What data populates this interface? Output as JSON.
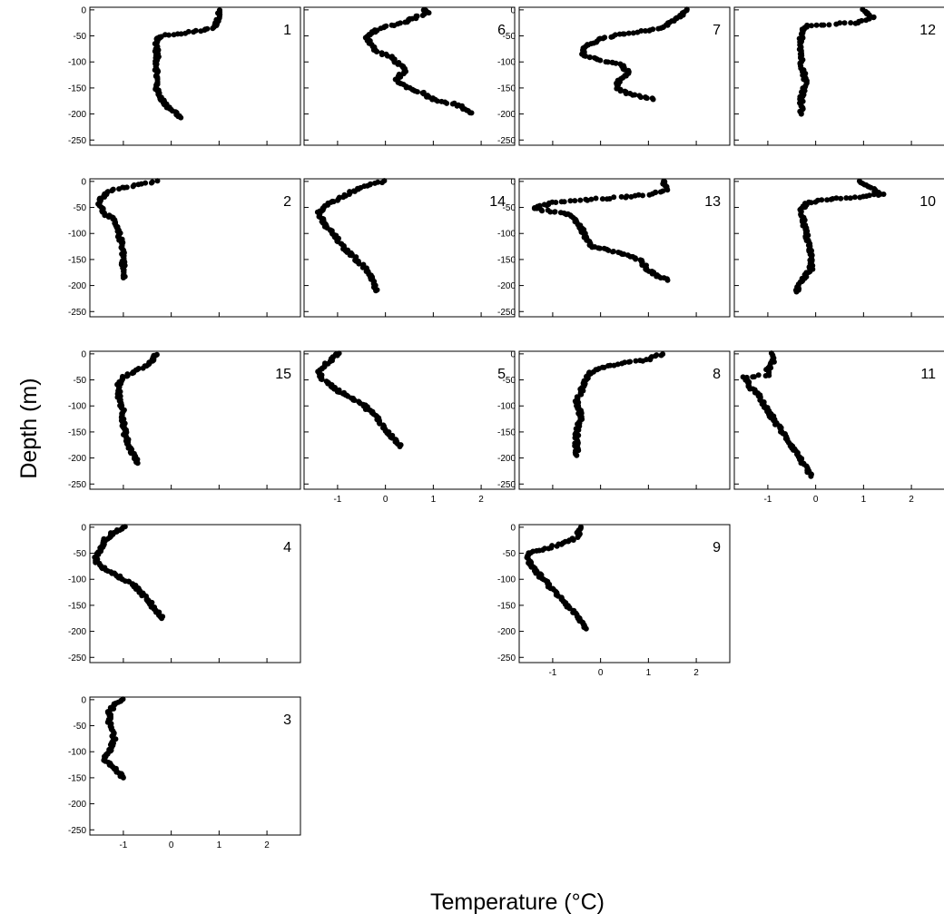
{
  "figure": {
    "xlabel": "Temperature (°C)",
    "ylabel": "Depth (m)"
  },
  "chart_data": {
    "type": "scatter",
    "xlabel": "Temperature (°C)",
    "ylabel": "Depth (m)",
    "xlim": [
      -1.7,
      2.7
    ],
    "ylim": [
      -260,
      5
    ],
    "x_ticks": [
      -1,
      0,
      1,
      2
    ],
    "y_ticks": [
      0,
      -50,
      -100,
      -150,
      -200,
      -250
    ],
    "x_tick_labels": [
      "-1",
      "0",
      "1",
      "2"
    ],
    "y_tick_labels": [
      "0",
      "-50",
      "-100",
      "-150",
      "-200",
      "-250"
    ],
    "grid": false,
    "marker_color": "#000000",
    "panels": [
      {
        "id": "1",
        "row": 0,
        "col": 0,
        "profile": [
          [
            1.0,
            0
          ],
          [
            1.0,
            -10
          ],
          [
            0.95,
            -25
          ],
          [
            0.9,
            -33
          ],
          [
            0.6,
            -40
          ],
          [
            0.2,
            -45
          ],
          [
            -0.2,
            -50
          ],
          [
            -0.3,
            -55
          ],
          [
            -0.3,
            -100
          ],
          [
            -0.3,
            -155
          ],
          [
            -0.1,
            -185
          ],
          [
            0.1,
            -198
          ],
          [
            0.2,
            -207
          ]
        ]
      },
      {
        "id": "6",
        "row": 0,
        "col": 1,
        "profile": [
          [
            0.8,
            0
          ],
          [
            0.9,
            -5
          ],
          [
            0.6,
            -15
          ],
          [
            0.4,
            -25
          ],
          [
            0.1,
            -30
          ],
          [
            -0.2,
            -40
          ],
          [
            -0.4,
            -50
          ],
          [
            -0.3,
            -65
          ],
          [
            -0.2,
            -80
          ],
          [
            0.1,
            -90
          ],
          [
            0.3,
            -105
          ],
          [
            0.4,
            -118
          ],
          [
            0.2,
            -135
          ],
          [
            0.5,
            -150
          ],
          [
            0.8,
            -160
          ],
          [
            1.0,
            -172
          ],
          [
            1.5,
            -182
          ],
          [
            1.8,
            -198
          ]
        ]
      },
      {
        "id": "7",
        "row": 0,
        "col": 2,
        "profile": [
          [
            1.8,
            0
          ],
          [
            1.7,
            -10
          ],
          [
            1.5,
            -20
          ],
          [
            1.4,
            -30
          ],
          [
            1.0,
            -40
          ],
          [
            0.5,
            -45
          ],
          [
            0.0,
            -55
          ],
          [
            -0.3,
            -70
          ],
          [
            -0.4,
            -85
          ],
          [
            -0.1,
            -95
          ],
          [
            0.4,
            -105
          ],
          [
            0.6,
            -120
          ],
          [
            0.4,
            -135
          ],
          [
            0.3,
            -150
          ],
          [
            0.6,
            -162
          ],
          [
            0.9,
            -168
          ],
          [
            1.1,
            -172
          ]
        ]
      },
      {
        "id": "12",
        "row": 0,
        "col": 3,
        "profile": [
          [
            1.0,
            0
          ],
          [
            1.2,
            -15
          ],
          [
            0.8,
            -25
          ],
          [
            0.2,
            -28
          ],
          [
            -0.2,
            -30
          ],
          [
            -0.3,
            -40
          ],
          [
            -0.3,
            -100
          ],
          [
            -0.2,
            -140
          ],
          [
            -0.3,
            -170
          ],
          [
            -0.3,
            -200
          ]
        ]
      },
      {
        "id": "2",
        "row": 1,
        "col": 0,
        "profile": [
          [
            -0.3,
            0
          ],
          [
            -0.6,
            -5
          ],
          [
            -0.9,
            -10
          ],
          [
            -1.2,
            -15
          ],
          [
            -1.4,
            -25
          ],
          [
            -1.5,
            -40
          ],
          [
            -1.4,
            -60
          ],
          [
            -1.2,
            -75
          ],
          [
            -1.1,
            -100
          ],
          [
            -1.0,
            -130
          ],
          [
            -1.0,
            -160
          ],
          [
            -1.0,
            -185
          ]
        ]
      },
      {
        "id": "14",
        "row": 1,
        "col": 1,
        "profile": [
          [
            0.0,
            0
          ],
          [
            -0.3,
            -5
          ],
          [
            -0.6,
            -15
          ],
          [
            -0.9,
            -30
          ],
          [
            -1.2,
            -45
          ],
          [
            -1.4,
            -60
          ],
          [
            -1.3,
            -80
          ],
          [
            -1.1,
            -100
          ],
          [
            -0.9,
            -125
          ],
          [
            -0.6,
            -150
          ],
          [
            -0.3,
            -180
          ],
          [
            -0.2,
            -210
          ]
        ]
      },
      {
        "id": "13",
        "row": 1,
        "col": 2,
        "profile": [
          [
            1.3,
            0
          ],
          [
            1.4,
            -15
          ],
          [
            1.0,
            -25
          ],
          [
            0.5,
            -30
          ],
          [
            -1.0,
            -40
          ],
          [
            -1.4,
            -52
          ],
          [
            -0.6,
            -65
          ],
          [
            -0.4,
            -90
          ],
          [
            -0.3,
            -110
          ],
          [
            -0.2,
            -125
          ],
          [
            0.3,
            -135
          ],
          [
            0.8,
            -150
          ],
          [
            1.0,
            -170
          ],
          [
            1.2,
            -183
          ],
          [
            1.4,
            -190
          ]
        ]
      },
      {
        "id": "10",
        "row": 1,
        "col": 3,
        "profile": [
          [
            0.9,
            0
          ],
          [
            1.2,
            -15
          ],
          [
            1.4,
            -25
          ],
          [
            0.8,
            -30
          ],
          [
            0.2,
            -35
          ],
          [
            -0.2,
            -42
          ],
          [
            -0.3,
            -55
          ],
          [
            -0.2,
            -100
          ],
          [
            -0.1,
            -140
          ],
          [
            -0.1,
            -170
          ],
          [
            -0.3,
            -190
          ],
          [
            -0.4,
            -212
          ]
        ]
      },
      {
        "id": "15",
        "row": 2,
        "col": 0,
        "profile": [
          [
            -0.3,
            0
          ],
          [
            -0.4,
            -15
          ],
          [
            -0.7,
            -30
          ],
          [
            -1.0,
            -45
          ],
          [
            -1.1,
            -60
          ],
          [
            -1.1,
            -80
          ],
          [
            -1.0,
            -110
          ],
          [
            -1.0,
            -140
          ],
          [
            -0.9,
            -175
          ],
          [
            -0.7,
            -210
          ]
        ]
      },
      {
        "id": "5",
        "row": 2,
        "col": 1,
        "profile": [
          [
            -1.0,
            0
          ],
          [
            -1.1,
            -10
          ],
          [
            -1.3,
            -25
          ],
          [
            -1.4,
            -35
          ],
          [
            -1.3,
            -50
          ],
          [
            -1.0,
            -70
          ],
          [
            -0.5,
            -95
          ],
          [
            -0.2,
            -120
          ],
          [
            0.0,
            -145
          ],
          [
            0.2,
            -165
          ],
          [
            0.3,
            -178
          ]
        ]
      },
      {
        "id": "8",
        "row": 2,
        "col": 2,
        "profile": [
          [
            1.3,
            0
          ],
          [
            1.0,
            -10
          ],
          [
            0.5,
            -18
          ],
          [
            0.1,
            -25
          ],
          [
            -0.2,
            -35
          ],
          [
            -0.3,
            -50
          ],
          [
            -0.4,
            -70
          ],
          [
            -0.5,
            -90
          ],
          [
            -0.4,
            -120
          ],
          [
            -0.5,
            -150
          ],
          [
            -0.5,
            -195
          ]
        ]
      },
      {
        "id": "11",
        "row": 2,
        "col": 3,
        "profile": [
          [
            -0.9,
            0
          ],
          [
            -0.9,
            -15
          ],
          [
            -1.0,
            -30
          ],
          [
            -1.0,
            -40
          ],
          [
            -1.5,
            -45
          ],
          [
            -1.4,
            -60
          ],
          [
            -1.2,
            -80
          ],
          [
            -1.0,
            -110
          ],
          [
            -0.7,
            -150
          ],
          [
            -0.4,
            -190
          ],
          [
            -0.2,
            -220
          ],
          [
            -0.1,
            -235
          ]
        ]
      },
      {
        "id": "4",
        "row": 3,
        "col": 0,
        "profile": [
          [
            -1.0,
            0
          ],
          [
            -1.2,
            -10
          ],
          [
            -1.4,
            -25
          ],
          [
            -1.5,
            -45
          ],
          [
            -1.6,
            -65
          ],
          [
            -1.4,
            -80
          ],
          [
            -1.1,
            -95
          ],
          [
            -0.8,
            -110
          ],
          [
            -0.6,
            -130
          ],
          [
            -0.4,
            -150
          ],
          [
            -0.2,
            -175
          ]
        ]
      },
      {
        "id": "9",
        "row": 3,
        "col": 2,
        "profile": [
          [
            -0.4,
            0
          ],
          [
            -0.5,
            -20
          ],
          [
            -0.8,
            -30
          ],
          [
            -1.1,
            -40
          ],
          [
            -1.5,
            -50
          ],
          [
            -1.5,
            -65
          ],
          [
            -1.4,
            -80
          ],
          [
            -1.1,
            -110
          ],
          [
            -0.8,
            -140
          ],
          [
            -0.5,
            -170
          ],
          [
            -0.3,
            -195
          ]
        ]
      },
      {
        "id": "3",
        "row": 4,
        "col": 0,
        "profile": [
          [
            -1.0,
            0
          ],
          [
            -1.2,
            -10
          ],
          [
            -1.3,
            -25
          ],
          [
            -1.3,
            -40
          ],
          [
            -1.2,
            -60
          ],
          [
            -1.2,
            -80
          ],
          [
            -1.3,
            -100
          ],
          [
            -1.4,
            -115
          ],
          [
            -1.2,
            -130
          ],
          [
            -1.0,
            -150
          ]
        ]
      }
    ]
  }
}
